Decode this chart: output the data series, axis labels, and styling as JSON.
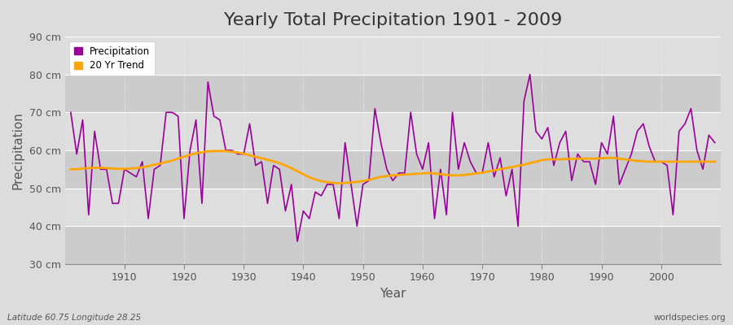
{
  "title": "Yearly Total Precipitation 1901 - 2009",
  "xlabel": "Year",
  "ylabel": "Precipitation",
  "years": [
    1901,
    1902,
    1903,
    1904,
    1905,
    1906,
    1907,
    1908,
    1909,
    1910,
    1911,
    1912,
    1913,
    1914,
    1915,
    1916,
    1917,
    1918,
    1919,
    1920,
    1921,
    1922,
    1923,
    1924,
    1925,
    1926,
    1927,
    1928,
    1929,
    1930,
    1931,
    1932,
    1933,
    1934,
    1935,
    1936,
    1937,
    1938,
    1939,
    1940,
    1941,
    1942,
    1943,
    1944,
    1945,
    1946,
    1947,
    1948,
    1949,
    1950,
    1951,
    1952,
    1953,
    1954,
    1955,
    1956,
    1957,
    1958,
    1959,
    1960,
    1961,
    1962,
    1963,
    1964,
    1965,
    1966,
    1967,
    1968,
    1969,
    1970,
    1971,
    1972,
    1973,
    1974,
    1975,
    1976,
    1977,
    1978,
    1979,
    1980,
    1981,
    1982,
    1983,
    1984,
    1985,
    1986,
    1987,
    1988,
    1989,
    1990,
    1991,
    1992,
    1993,
    1994,
    1995,
    1996,
    1997,
    1998,
    1999,
    2000,
    2001,
    2002,
    2003,
    2004,
    2005,
    2006,
    2007,
    2008,
    2009
  ],
  "precip": [
    70,
    59,
    68,
    43,
    65,
    55,
    55,
    46,
    46,
    55,
    54,
    53,
    57,
    42,
    55,
    56,
    70,
    70,
    69,
    42,
    60,
    68,
    46,
    78,
    69,
    68,
    60,
    60,
    59,
    59,
    67,
    56,
    57,
    46,
    56,
    55,
    44,
    51,
    36,
    44,
    42,
    49,
    48,
    51,
    51,
    42,
    62,
    51,
    40,
    51,
    52,
    71,
    62,
    55,
    52,
    54,
    54,
    70,
    59,
    55,
    62,
    42,
    55,
    43,
    70,
    55,
    62,
    57,
    54,
    54,
    62,
    53,
    58,
    48,
    55,
    40,
    73,
    80,
    65,
    63,
    66,
    56,
    62,
    65,
    52,
    59,
    57,
    57,
    51,
    62,
    59,
    69,
    51,
    55,
    59,
    65,
    67,
    61,
    57,
    57,
    56,
    43,
    65,
    67,
    71,
    60,
    55,
    64,
    62
  ],
  "trend": [
    55.0,
    55.0,
    55.2,
    55.3,
    55.4,
    55.4,
    55.3,
    55.2,
    55.1,
    55.1,
    55.2,
    55.3,
    55.5,
    55.8,
    56.2,
    56.5,
    56.9,
    57.3,
    57.8,
    58.3,
    58.8,
    59.2,
    59.5,
    59.7,
    59.8,
    59.8,
    59.8,
    59.6,
    59.4,
    59.1,
    58.7,
    58.3,
    57.9,
    57.5,
    57.1,
    56.6,
    56.0,
    55.3,
    54.5,
    53.7,
    52.9,
    52.3,
    51.9,
    51.6,
    51.4,
    51.3,
    51.4,
    51.5,
    51.7,
    51.9,
    52.2,
    52.6,
    53.0,
    53.2,
    53.4,
    53.5,
    53.6,
    53.7,
    53.8,
    53.9,
    54.0,
    53.9,
    53.7,
    53.5,
    53.4,
    53.4,
    53.5,
    53.7,
    53.9,
    54.1,
    54.4,
    54.7,
    55.0,
    55.3,
    55.6,
    55.9,
    56.2,
    56.6,
    57.0,
    57.4,
    57.6,
    57.6,
    57.6,
    57.7,
    57.7,
    57.8,
    57.8,
    57.8,
    57.8,
    57.9,
    58.0,
    58.0,
    57.8,
    57.6,
    57.4,
    57.2,
    57.1,
    57.0,
    57.0,
    57.0,
    57.0,
    57.0,
    57.0,
    57.0,
    57.0,
    57.0,
    57.0,
    57.0,
    57.0
  ],
  "precip_color": "#990099",
  "trend_color": "#FFA500",
  "bg_color": "#DCDCDC",
  "band_color_dark": "#CCCCCC",
  "band_color_light": "#DEDEDE",
  "grid_color": "#FFFFFF",
  "ylim": [
    30,
    90
  ],
  "yticks": [
    30,
    40,
    50,
    60,
    70,
    80,
    90
  ],
  "ytick_labels": [
    "30 cm",
    "40 cm",
    "50 cm",
    "60 cm",
    "70 cm",
    "80 cm",
    "90 cm"
  ],
  "xticks": [
    1910,
    1920,
    1930,
    1940,
    1950,
    1960,
    1970,
    1980,
    1990,
    2000
  ],
  "title_fontsize": 16,
  "axis_label_fontsize": 11,
  "tick_fontsize": 9,
  "footer_left": "Latitude 60.75 Longitude 28.25",
  "footer_right": "worldspecies.org"
}
